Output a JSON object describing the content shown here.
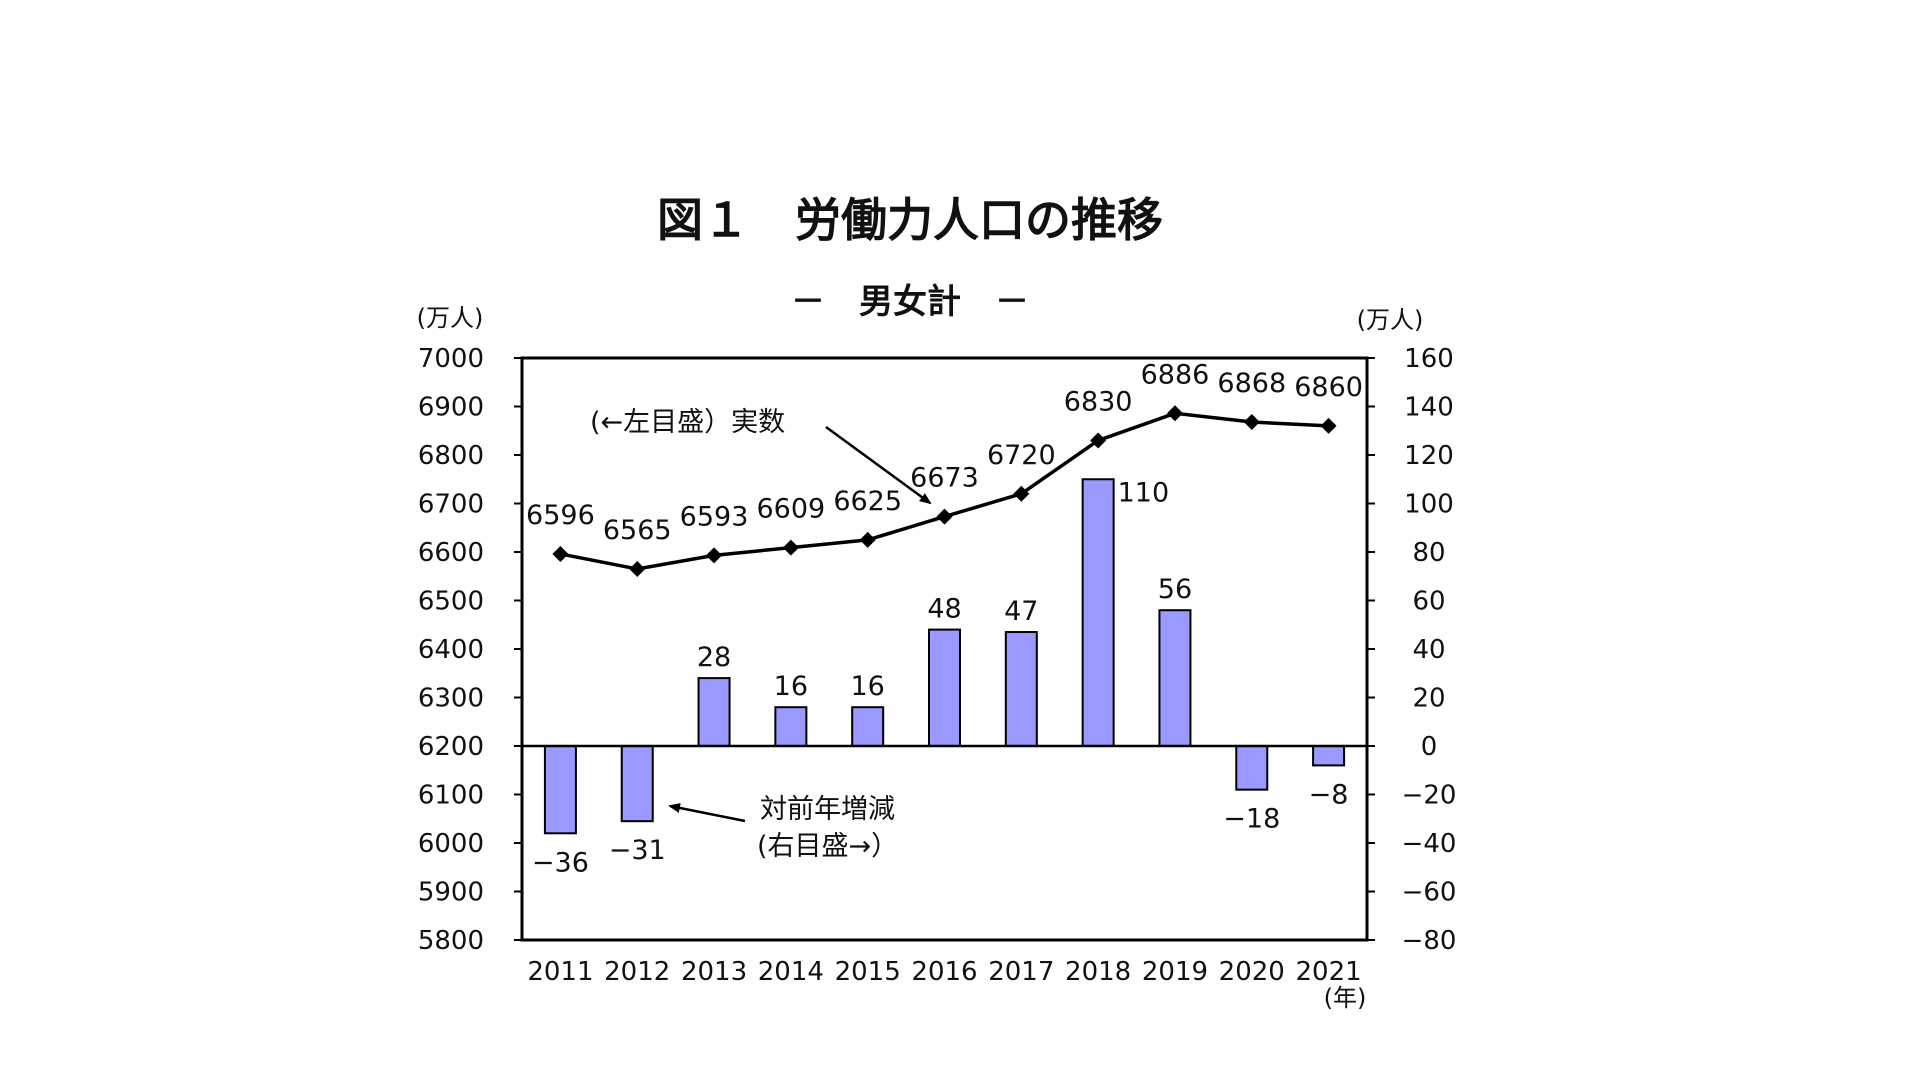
{
  "chart_data": {
    "type": "bar+line",
    "title": "図１　労働力人口の推移",
    "subtitle": "－　男女計　－",
    "x_unit_label": "(年)",
    "categories": [
      "2011",
      "2012",
      "2013",
      "2014",
      "2015",
      "2016",
      "2017",
      "2018",
      "2019",
      "2020",
      "2021"
    ],
    "line_series": {
      "name": "実数",
      "axis": "left",
      "values": [
        6596,
        6565,
        6593,
        6609,
        6625,
        6673,
        6720,
        6830,
        6886,
        6868,
        6860
      ],
      "labels": [
        "6596",
        "6565",
        "6593",
        "6609",
        "6625",
        "6673",
        "6720",
        "6830",
        "6886",
        "6868",
        "6860"
      ]
    },
    "bar_series": {
      "name": "対前年増減",
      "axis": "right",
      "values": [
        -36,
        -31,
        28,
        16,
        16,
        48,
        47,
        110,
        56,
        -18,
        -8
      ],
      "labels": [
        "−36",
        "−31",
        "28",
        "16",
        "16",
        "48",
        "47",
        "110",
        "56",
        "−18",
        "−8"
      ]
    },
    "left_axis": {
      "unit": "(万人)",
      "ylim": [
        5800,
        7000
      ],
      "ticks": [
        "7000",
        "6900",
        "6800",
        "6700",
        "6600",
        "6500",
        "6400",
        "6300",
        "6200",
        "6100",
        "6000",
        "5900",
        "5800"
      ]
    },
    "right_axis": {
      "unit": "(万人)",
      "ylim": [
        -80,
        160
      ],
      "ticks": [
        "160",
        "140",
        "120",
        "100",
        "80",
        "60",
        "40",
        "20",
        "0",
        "−20",
        "−40",
        "−60",
        "−80"
      ]
    },
    "annotations": {
      "line_note": "(←左目盛）実数",
      "bar_note_line1": "対前年増減",
      "bar_note_line2": "(右目盛→）"
    },
    "colors": {
      "bar_fill": "#9999ff",
      "bar_stroke": "#000000",
      "line": "#000000",
      "marker": "#000000"
    }
  }
}
